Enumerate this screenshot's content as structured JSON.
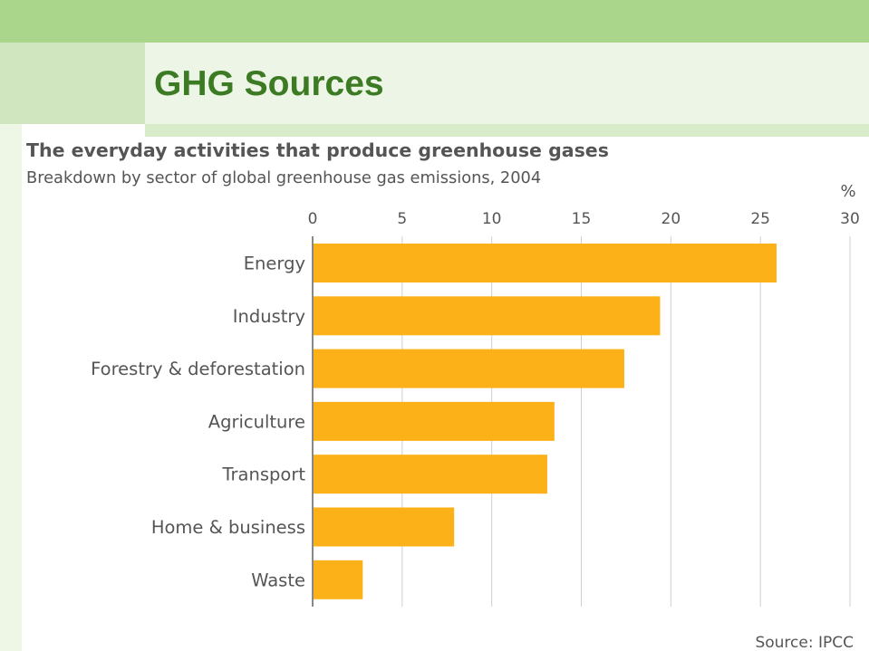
{
  "slide": {
    "title": "GHG Sources",
    "colors": {
      "top_band": "#a9d68b",
      "title_band": "#edf6e6",
      "left_block": "#cfe6bf",
      "title_text": "#3d7a24"
    }
  },
  "chart_data": {
    "type": "bar",
    "orientation": "horizontal",
    "title": "The everyday activities that produce greenhouse gases",
    "subtitle": "Breakdown by sector of global greenhouse gas emissions, 2004",
    "unit_label": "%",
    "categories": [
      "Energy",
      "Industry",
      "Forestry & deforestation",
      "Agriculture",
      "Transport",
      "Home & business",
      "Waste"
    ],
    "values": [
      25.9,
      19.4,
      17.4,
      13.5,
      13.1,
      7.9,
      2.8
    ],
    "xlim": [
      0,
      30
    ],
    "xticks": [
      "0",
      "5",
      "10",
      "15",
      "20",
      "25",
      "30"
    ],
    "grid": true,
    "bar_color": "#fbb117",
    "source": "Source: IPCC"
  }
}
